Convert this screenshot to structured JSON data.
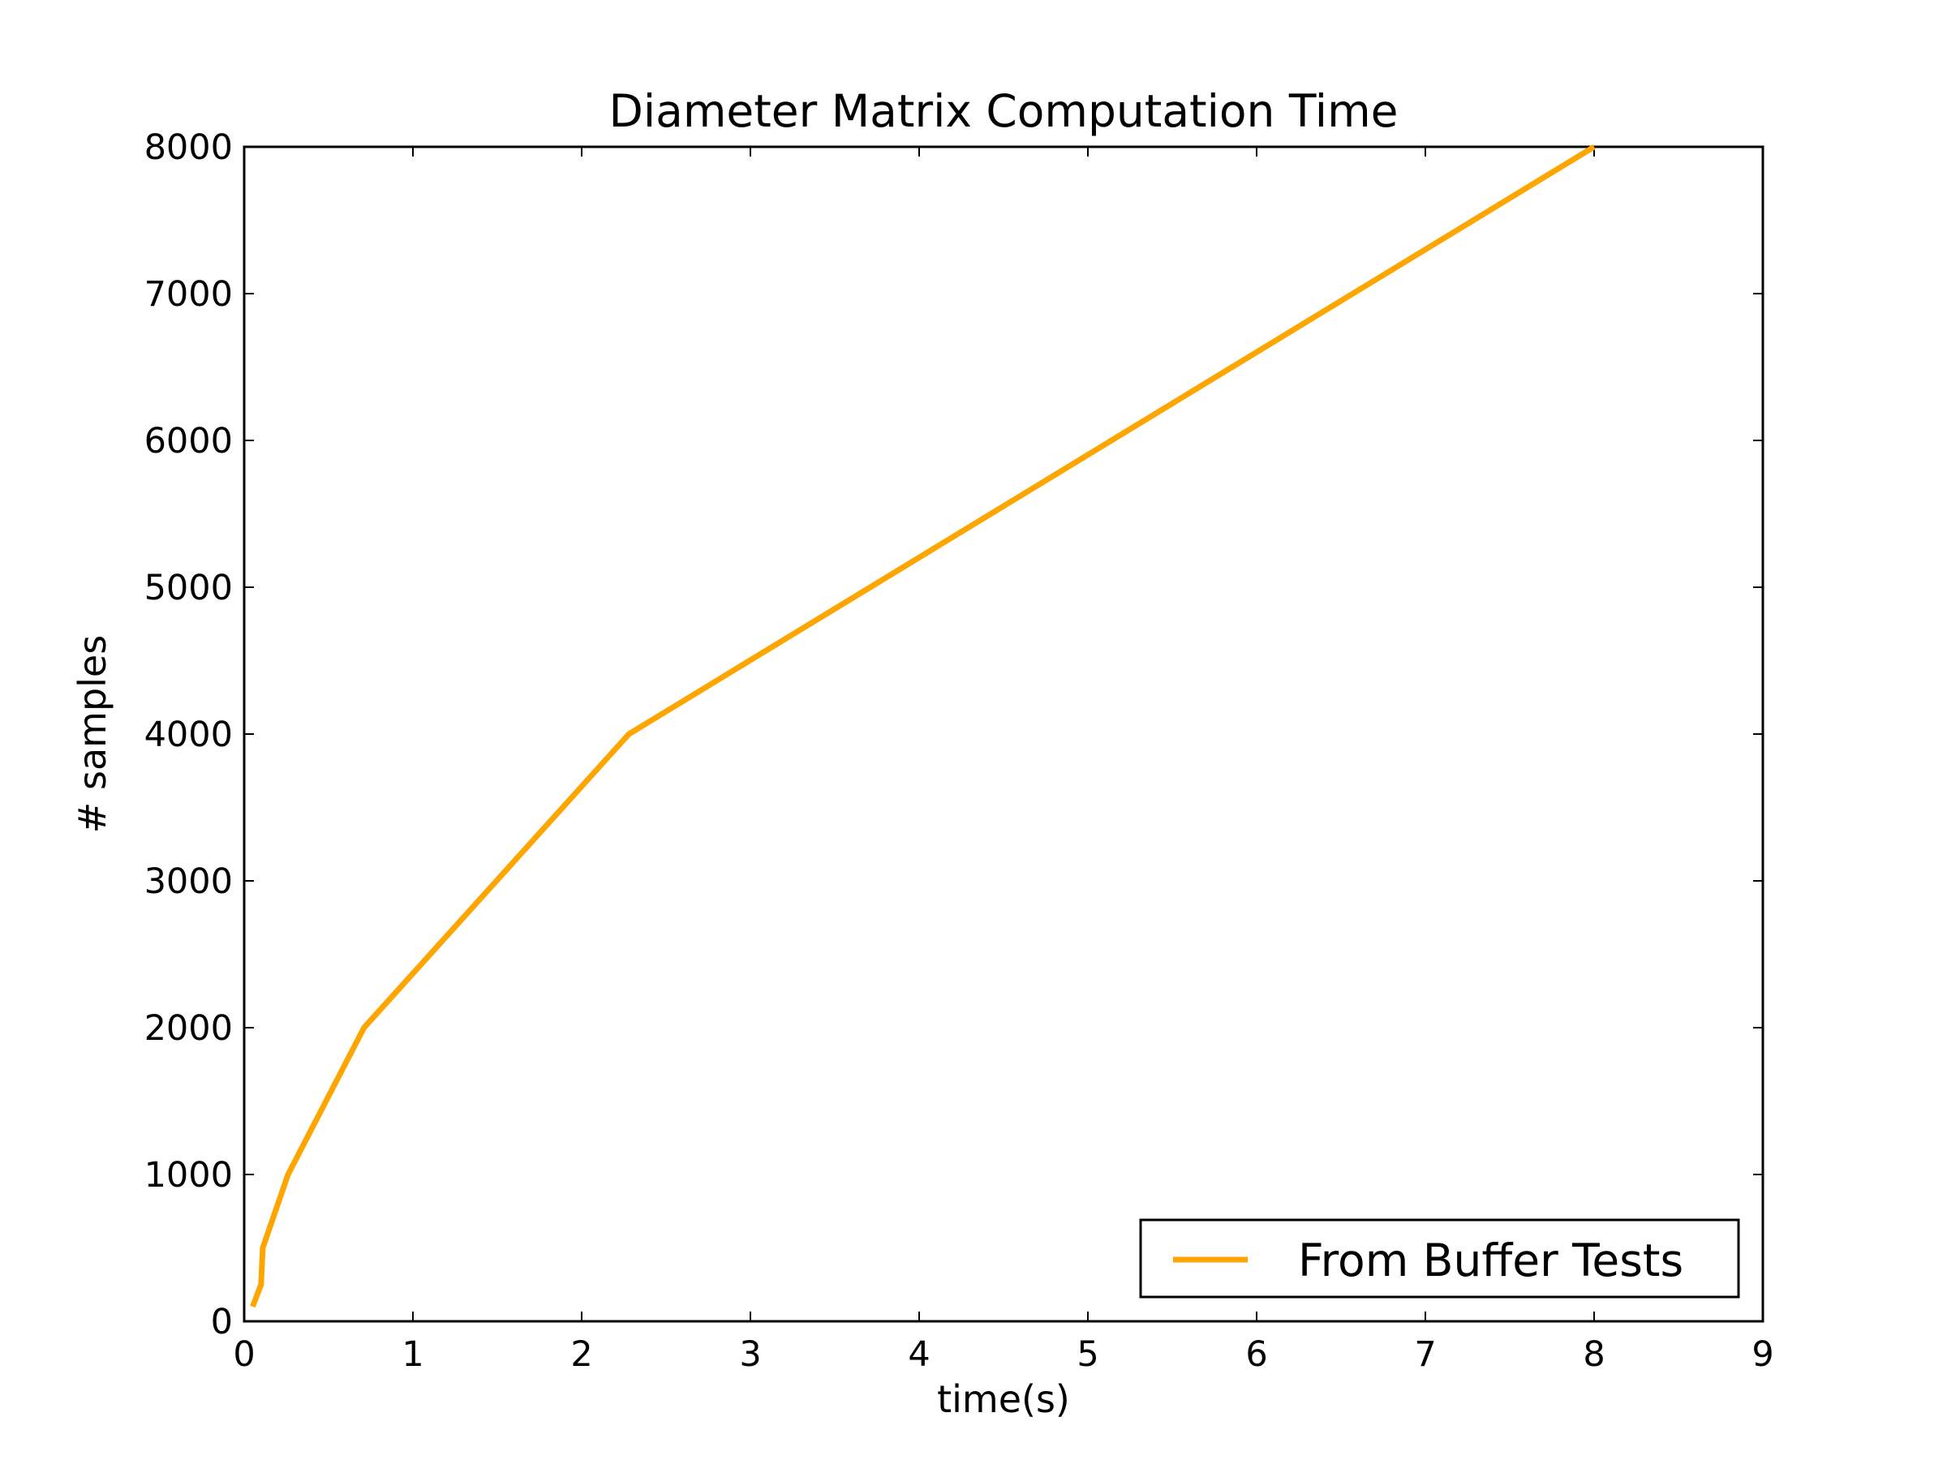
{
  "chart_data": {
    "type": "line",
    "title": "Diameter Matrix Computation Time",
    "xlabel": "time(s)",
    "ylabel": "# samples",
    "xlim": [
      0,
      9
    ],
    "ylim": [
      0,
      8000
    ],
    "x_ticks": [
      "0",
      "1",
      "2",
      "3",
      "4",
      "5",
      "6",
      "7",
      "8",
      "9"
    ],
    "y_ticks": [
      "0",
      "1000",
      "2000",
      "3000",
      "4000",
      "5000",
      "6000",
      "7000",
      "8000"
    ],
    "grid": false,
    "legend_position": "lower-right",
    "series": [
      {
        "name": "From Buffer Tests",
        "color": "#FFA500",
        "x": [
          0.05,
          0.1,
          0.11,
          0.26,
          0.71,
          2.28,
          8.0
        ],
        "y": [
          100,
          250,
          500,
          1000,
          2000,
          4000,
          8000
        ]
      }
    ]
  }
}
